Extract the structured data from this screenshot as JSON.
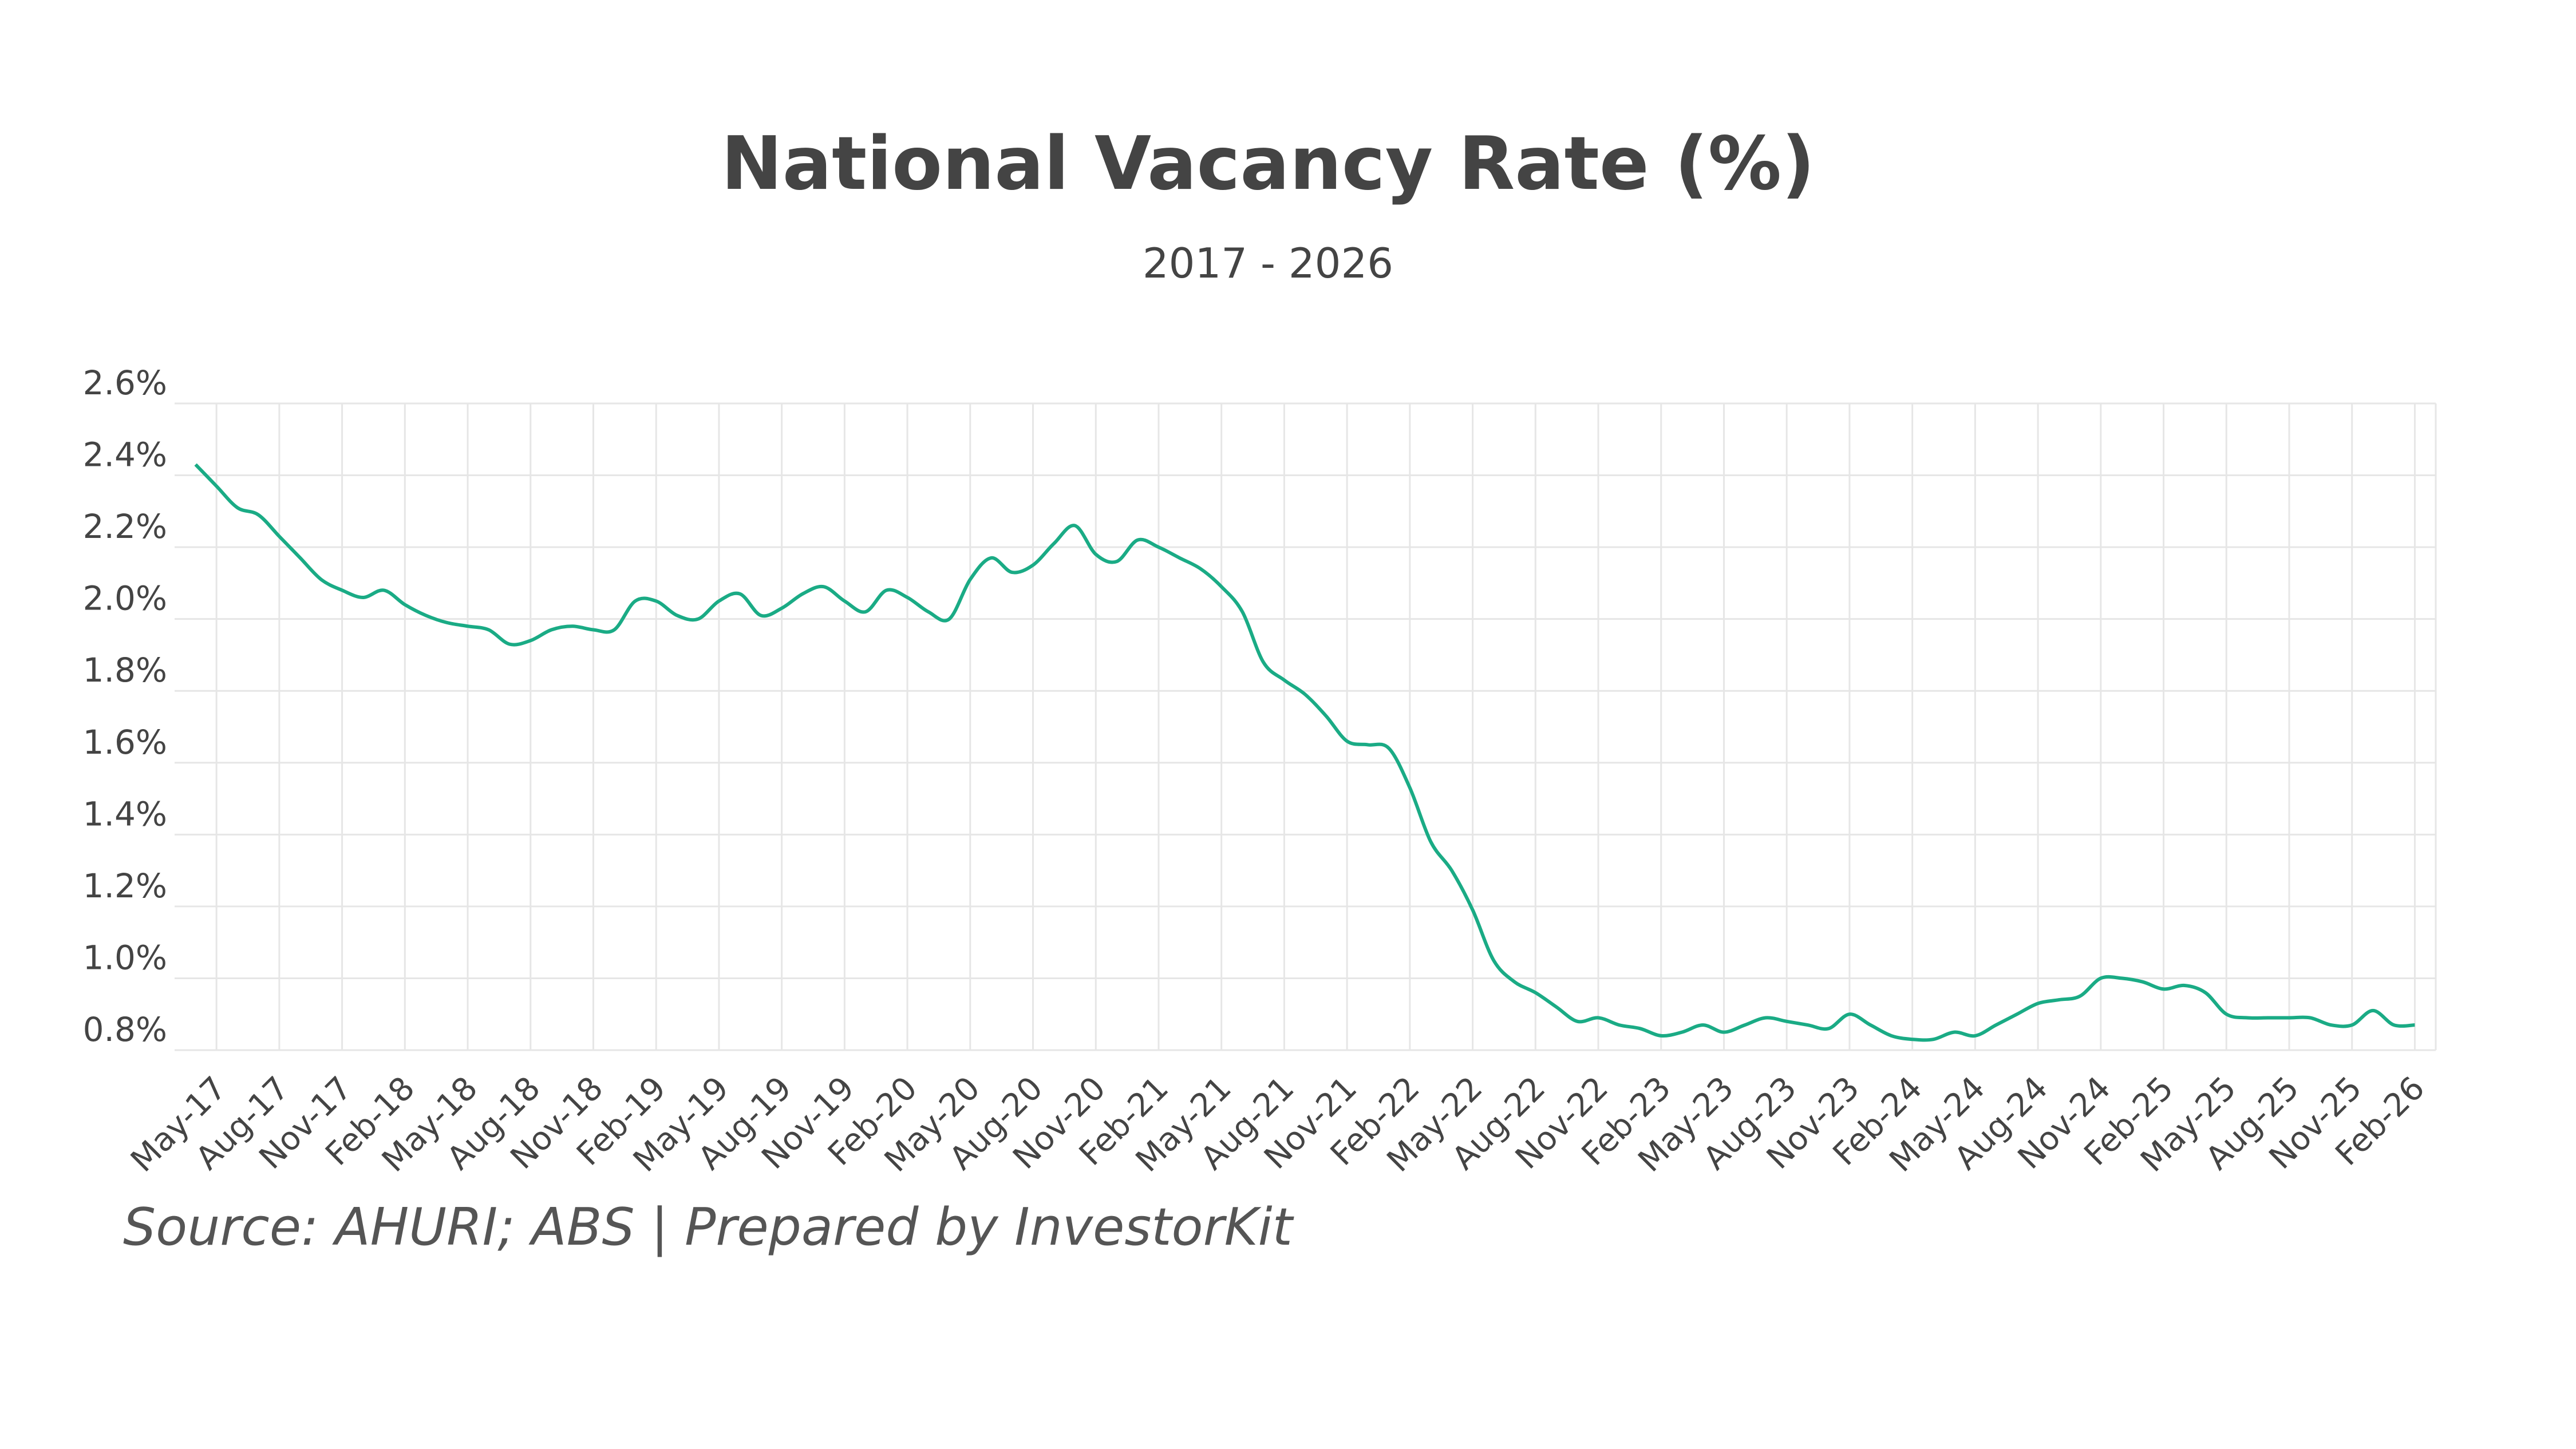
{
  "chart_data": {
    "type": "line",
    "title": "National Vacancy Rate (%)",
    "subtitle": "2017 - 2026",
    "source": "Source: AHURI; ABS | Prepared by InvestorKit",
    "y_ticks": [
      "0.8%",
      "1.0%",
      "1.2%",
      "1.4%",
      "1.6%",
      "1.8%",
      "2.0%",
      "2.2%",
      "2.4%",
      "2.6%"
    ],
    "ylim": [
      0.8,
      2.6
    ],
    "grid": true,
    "x_tick_labels": [
      "May-17",
      "Aug-17",
      "Nov-17",
      "Feb-18",
      "May-18",
      "Aug-18",
      "Nov-18",
      "Feb-19",
      "May-19",
      "Aug-19",
      "Nov-19",
      "Feb-20",
      "May-20",
      "Aug-20",
      "Nov-20",
      "Feb-21",
      "May-21",
      "Aug-21",
      "Nov-21",
      "Feb-22",
      "May-22",
      "Aug-22",
      "Nov-22",
      "Feb-23",
      "May-23",
      "Aug-23",
      "Nov-23",
      "Feb-24",
      "May-24",
      "Aug-24",
      "Nov-24",
      "Feb-25",
      "May-25",
      "Aug-25",
      "Nov-25",
      "Feb-26"
    ],
    "line_color": "#1aab85",
    "series": [
      {
        "x": [
          "2017-04",
          "2017-05",
          "2017-06",
          "2017-07",
          "2017-08",
          "2017-09",
          "2017-10",
          "2017-11",
          "2017-12",
          "2018-01",
          "2018-02",
          "2018-03",
          "2018-04",
          "2018-05",
          "2018-06",
          "2018-07",
          "2018-08",
          "2018-09",
          "2018-10",
          "2018-11",
          "2018-12",
          "2019-01",
          "2019-02",
          "2019-03",
          "2019-04",
          "2019-05",
          "2019-06",
          "2019-07",
          "2019-08",
          "2019-09",
          "2019-10",
          "2019-11",
          "2019-12",
          "2020-01",
          "2020-02",
          "2020-03",
          "2020-04",
          "2020-05",
          "2020-06",
          "2020-07",
          "2020-08",
          "2020-09",
          "2020-10",
          "2020-11",
          "2020-12",
          "2021-01",
          "2021-02",
          "2021-03",
          "2021-04",
          "2021-05",
          "2021-06",
          "2021-07",
          "2021-08",
          "2021-09",
          "2021-10",
          "2021-11",
          "2021-12",
          "2022-01",
          "2022-02",
          "2022-03",
          "2022-04",
          "2022-05",
          "2022-06",
          "2022-07",
          "2022-08",
          "2022-09",
          "2022-10",
          "2022-11",
          "2022-12",
          "2023-01",
          "2023-02",
          "2023-03",
          "2023-04",
          "2023-05",
          "2023-06",
          "2023-07",
          "2023-08",
          "2023-09",
          "2023-10",
          "2023-11",
          "2023-12",
          "2024-01",
          "2024-02",
          "2024-03",
          "2024-04",
          "2024-05",
          "2024-06",
          "2024-07",
          "2024-08",
          "2024-09",
          "2024-10",
          "2024-11",
          "2024-12",
          "2025-01",
          "2025-02",
          "2025-03",
          "2025-04",
          "2025-05",
          "2025-06",
          "2025-07",
          "2025-08",
          "2025-09",
          "2025-10",
          "2025-11",
          "2025-12",
          "2026-01",
          "2026-02"
        ],
        "values": [
          2.43,
          2.37,
          2.31,
          2.29,
          2.23,
          2.17,
          2.11,
          2.08,
          2.06,
          2.08,
          2.04,
          2.01,
          1.99,
          1.98,
          1.97,
          1.93,
          1.94,
          1.97,
          1.98,
          1.97,
          1.97,
          2.05,
          2.05,
          2.01,
          2.0,
          2.05,
          2.07,
          2.01,
          2.03,
          2.07,
          2.09,
          2.05,
          2.02,
          2.08,
          2.06,
          2.02,
          2.0,
          2.11,
          2.17,
          2.13,
          2.15,
          2.21,
          2.26,
          2.18,
          2.16,
          2.22,
          2.2,
          2.17,
          2.14,
          2.09,
          2.02,
          1.88,
          1.83,
          1.79,
          1.73,
          1.66,
          1.65,
          1.64,
          1.53,
          1.38,
          1.3,
          1.19,
          1.05,
          0.99,
          0.96,
          0.92,
          0.88,
          0.89,
          0.87,
          0.86,
          0.84,
          0.85,
          0.87,
          0.85,
          0.87,
          0.89,
          0.88,
          0.87,
          0.86,
          0.9,
          0.87,
          0.84,
          0.83,
          0.83,
          0.85,
          0.84,
          0.87,
          0.9,
          0.93,
          0.94,
          0.95,
          1.0,
          1.0,
          0.99,
          0.97,
          0.98,
          0.96,
          0.9,
          0.89,
          0.89,
          0.89,
          0.89,
          0.87,
          0.87,
          0.91,
          0.87,
          0.87
        ]
      }
    ]
  }
}
